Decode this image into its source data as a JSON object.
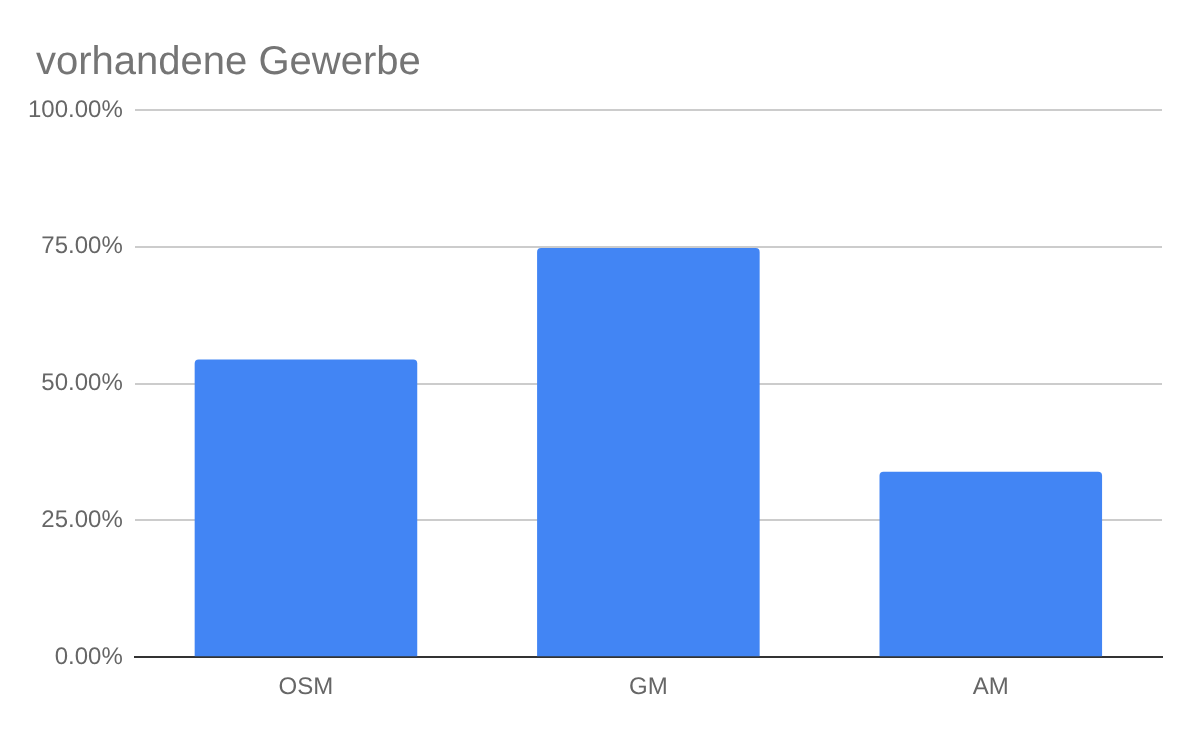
{
  "chart_data": {
    "type": "bar",
    "title": "vorhandene Gewerbe",
    "categories": [
      "OSM",
      "GM",
      "AM"
    ],
    "series": [
      {
        "color": "#4285f4",
        "values": [
          54.4,
          74.8,
          33.9
        ]
      }
    ],
    "ylim": [
      0,
      100
    ],
    "yticks": [
      {
        "value": 0,
        "label": "0.00%"
      },
      {
        "value": 25,
        "label": "25.00%"
      },
      {
        "value": 50,
        "label": "50.00%"
      },
      {
        "value": 75,
        "label": "75.00%"
      },
      {
        "value": 100,
        "label": "100.00%"
      }
    ],
    "grid": "y",
    "legend": false
  }
}
